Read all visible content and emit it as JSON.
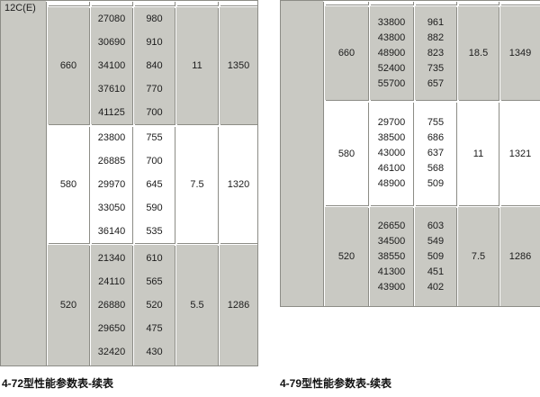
{
  "colors": {
    "cell_gray": "#c9c9c3",
    "cell_white": "#ffffff",
    "border_gray": "#8c8c86",
    "text": "#1c1c1c"
  },
  "left_table": {
    "corner_label": "12C(E)",
    "caption": "4-72型性能参数表-续表",
    "groups": [
      {
        "label": "660",
        "flow": [
          "27080",
          "30690",
          "34100",
          "37610",
          "41125"
        ],
        "pressure": [
          "980",
          "910",
          "840",
          "770",
          "700"
        ],
        "power": "11",
        "rpm": "1350"
      },
      {
        "label": "580",
        "flow": [
          "23800",
          "26885",
          "29970",
          "33050",
          "36140"
        ],
        "pressure": [
          "755",
          "700",
          "645",
          "590",
          "535"
        ],
        "power": "7.5",
        "rpm": "1320"
      },
      {
        "label": "520",
        "flow": [
          "21340",
          "24110",
          "26880",
          "29650",
          "32420"
        ],
        "pressure": [
          "610",
          "565",
          "520",
          "475",
          "430"
        ],
        "power": "5.5",
        "rpm": "1286"
      }
    ]
  },
  "right_table": {
    "caption": "4-79型性能参数表-续表",
    "groups": [
      {
        "label": "660",
        "flow": [
          "33800",
          "43800",
          "48900",
          "52400",
          "55700"
        ],
        "pressure": [
          "961",
          "882",
          "823",
          "735",
          "657"
        ],
        "power": "18.5",
        "rpm": "1349"
      },
      {
        "label": "580",
        "flow": [
          "29700",
          "38500",
          "43000",
          "46100",
          "48900"
        ],
        "pressure": [
          "755",
          "686",
          "637",
          "568",
          "509"
        ],
        "power": "11",
        "rpm": "1321"
      },
      {
        "label": "520",
        "flow": [
          "26650",
          "34500",
          "38550",
          "41300",
          "43900"
        ],
        "pressure": [
          "603",
          "549",
          "509",
          "451",
          "402"
        ],
        "power": "7.5",
        "rpm": "1286"
      }
    ]
  }
}
